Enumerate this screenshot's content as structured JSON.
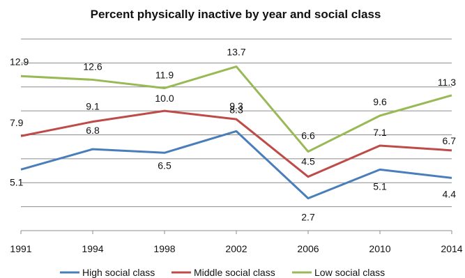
{
  "chart_data": {
    "type": "line",
    "title": "Percent physically inactive by year and social class",
    "xlabel": "",
    "ylabel": "",
    "categories": [
      "1991",
      "1994",
      "1998",
      "2002",
      "2006",
      "2010",
      "2014"
    ],
    "ylim": [
      0,
      16
    ],
    "grid": true,
    "legend_position": "bottom",
    "series": [
      {
        "name": "High social class",
        "color": "#4a7ebb",
        "values": [
          5.1,
          6.8,
          6.5,
          8.3,
          2.7,
          5.1,
          4.4
        ],
        "label_text": [
          "5.1",
          "6.8",
          "6.5",
          "8.3",
          "2.7",
          "5.1",
          "4.4"
        ]
      },
      {
        "name": "Middle social class",
        "color": "#be4b48",
        "values": [
          7.9,
          9.1,
          10.0,
          9.3,
          4.5,
          7.1,
          6.7
        ],
        "label_text": [
          "7.9",
          "9.1",
          "10.0",
          "9.3",
          "4.5",
          "7.1",
          "6.7"
        ]
      },
      {
        "name": "Low social class",
        "color": "#98b954",
        "values": [
          12.9,
          12.6,
          11.9,
          13.7,
          6.6,
          9.6,
          11.3
        ],
        "label_text": [
          "12.9",
          "12.6",
          "11.9",
          "13.7",
          "6.6",
          "9.6",
          "11.3"
        ]
      }
    ]
  }
}
